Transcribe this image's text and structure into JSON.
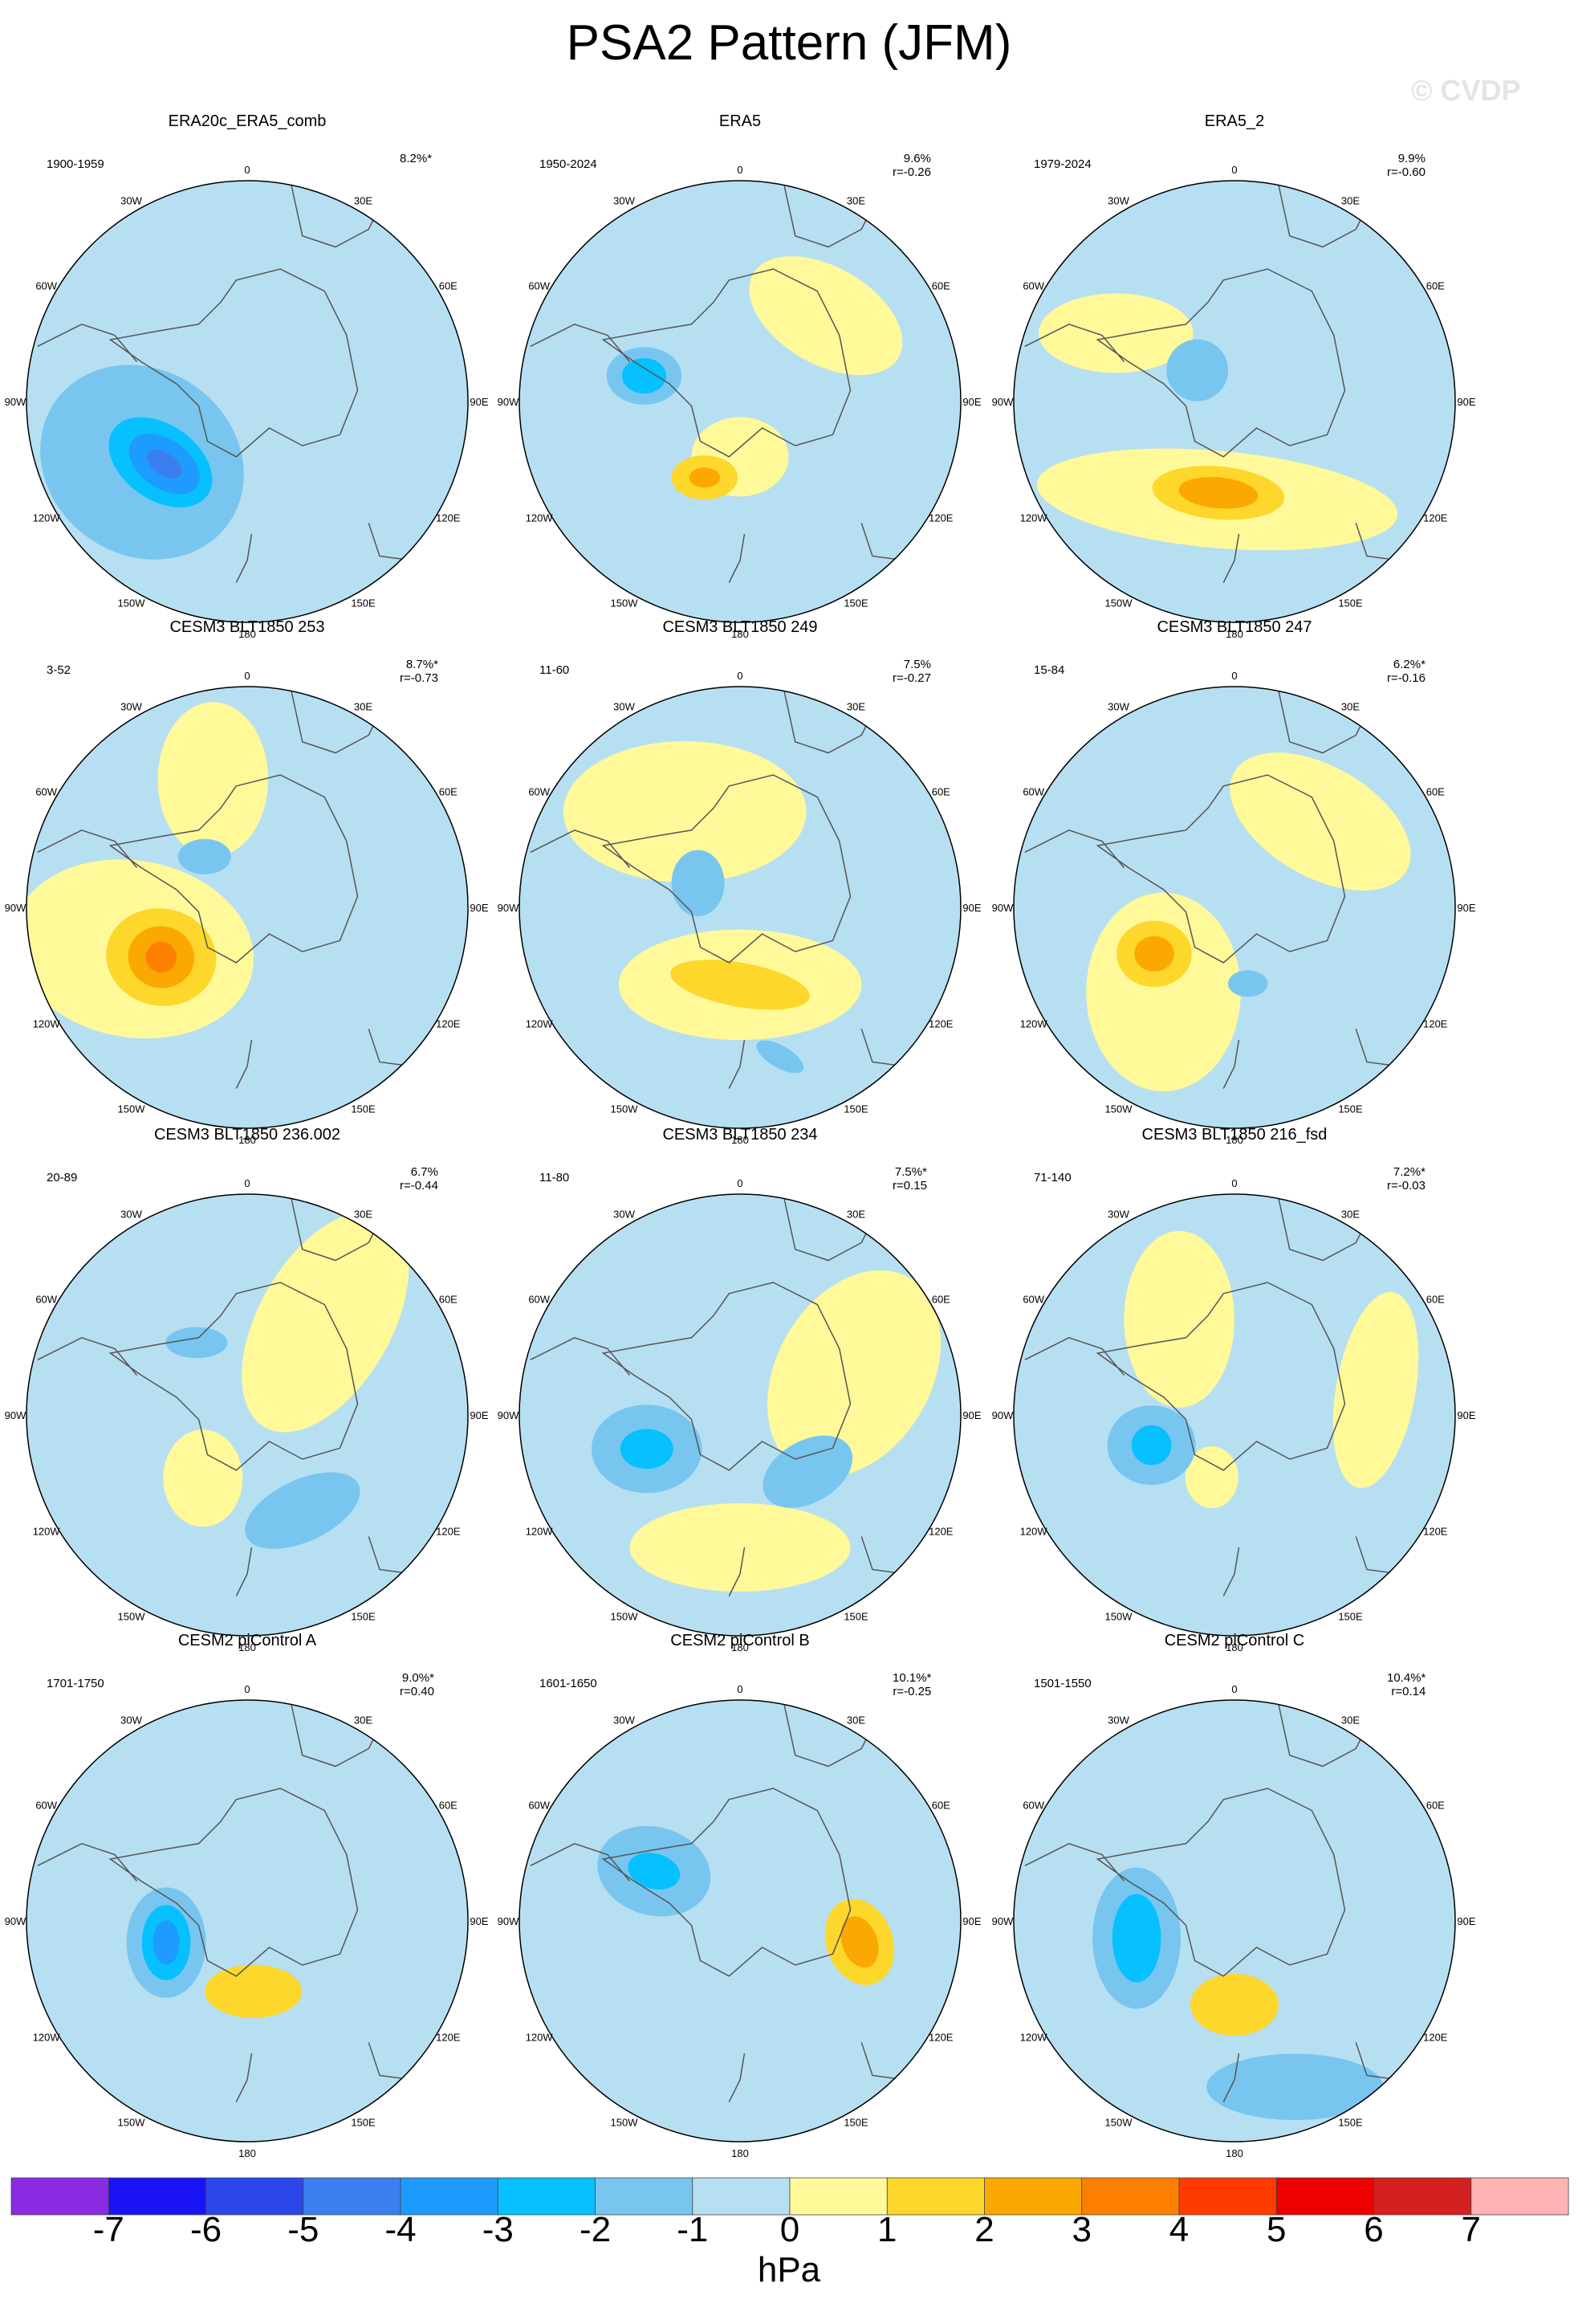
{
  "title": "PSA2 Pattern (JFM)",
  "watermark": "© CVDP",
  "colors": {
    "ocean_base": "#b7dff2",
    "continent_outline": "#555555",
    "levels": [
      "#8a2be2",
      "#1a14f5",
      "#2b47ea",
      "#3b7fee",
      "#1e9bff",
      "#06c0ff",
      "#78c6ef",
      "#b7dff2",
      "#fff99a",
      "#fdd72b",
      "#fca802",
      "#fd7f00",
      "#ff3b00",
      "#ec0000",
      "#d42020",
      "#ffb3b3"
    ]
  },
  "longitude_labels": [
    "0",
    "30E",
    "60E",
    "90E",
    "120E",
    "150E",
    "180",
    "150W",
    "120W",
    "90W",
    "60W",
    "30W"
  ],
  "colorbar": {
    "labels": [
      "-7",
      "-6",
      "-5",
      "-4",
      "-3",
      "-2",
      "-1",
      "0",
      "1",
      "2",
      "3",
      "4",
      "5",
      "6",
      "7"
    ],
    "unit": "hPa"
  },
  "panels": [
    {
      "title": "ERA20c_ERA5_comb",
      "years": "1900-1959",
      "pct": "8.2%*",
      "r": "",
      "anomalies": [
        {
          "lon": 240,
          "dist": 0.55,
          "rx": 0.48,
          "ry": 0.42,
          "rot": 35,
          "level": -1
        },
        {
          "lon": 235,
          "dist": 0.48,
          "rx": 0.26,
          "ry": 0.17,
          "rot": 35,
          "level": -2
        },
        {
          "lon": 233,
          "dist": 0.47,
          "rx": 0.18,
          "ry": 0.11,
          "rot": 35,
          "level": -3
        },
        {
          "lon": 233,
          "dist": 0.47,
          "rx": 0.09,
          "ry": 0.05,
          "rot": 35,
          "level": -4
        }
      ]
    },
    {
      "title": "ERA5",
      "years": "1950-2024",
      "pct": "9.6%",
      "r": "r=-0.26",
      "anomalies": [
        {
          "lon": 270,
          "dist": 0.45,
          "rx": 0.26,
          "ry": 0.22,
          "rot": 0,
          "level": 0
        },
        {
          "lon": 180,
          "dist": 0.25,
          "rx": 0.22,
          "ry": 0.18,
          "rot": 0,
          "level": 1
        },
        {
          "lon": 45,
          "dist": 0.55,
          "rx": 0.38,
          "ry": 0.22,
          "rot": 30,
          "level": 1
        },
        {
          "lon": 285,
          "dist": 0.45,
          "rx": 0.17,
          "ry": 0.13,
          "rot": 0,
          "level": -1
        },
        {
          "lon": 285,
          "dist": 0.45,
          "rx": 0.1,
          "ry": 0.08,
          "rot": 0,
          "level": -2
        },
        {
          "lon": 205,
          "dist": 0.38,
          "rx": 0.15,
          "ry": 0.1,
          "rot": 0,
          "level": 2
        },
        {
          "lon": 205,
          "dist": 0.38,
          "rx": 0.07,
          "ry": 0.045,
          "rot": 0,
          "level": 3
        }
      ]
    },
    {
      "title": "ERA5_2",
      "years": "1979-2024",
      "pct": "9.9%",
      "r": "r=-0.60",
      "anomalies": [
        {
          "lon": 190,
          "dist": 0.45,
          "rx": 0.82,
          "ry": 0.22,
          "rot": 5,
          "level": 1
        },
        {
          "lon": 300,
          "dist": 0.62,
          "rx": 0.35,
          "ry": 0.18,
          "rot": 0,
          "level": 1
        },
        {
          "lon": 310,
          "dist": 0.22,
          "rx": 0.14,
          "ry": 0.14,
          "rot": 0,
          "level": -1
        },
        {
          "lon": 190,
          "dist": 0.42,
          "rx": 0.3,
          "ry": 0.12,
          "rot": 5,
          "level": 2
        },
        {
          "lon": 190,
          "dist": 0.42,
          "rx": 0.18,
          "ry": 0.07,
          "rot": 5,
          "level": 3
        }
      ]
    },
    {
      "title": "CESM3 BLT1850 253",
      "years": "3-52",
      "pct": "8.7%*",
      "r": "r=-0.73",
      "anomalies": [
        {
          "lon": 250,
          "dist": 0.55,
          "rx": 0.55,
          "ry": 0.4,
          "rot": 10,
          "level": 1
        },
        {
          "lon": 345,
          "dist": 0.6,
          "rx": 0.25,
          "ry": 0.35,
          "rot": 0,
          "level": 1
        },
        {
          "lon": 320,
          "dist": 0.3,
          "rx": 0.12,
          "ry": 0.08,
          "rot": 0,
          "level": -1
        },
        {
          "lon": 240,
          "dist": 0.45,
          "rx": 0.25,
          "ry": 0.22,
          "rot": 10,
          "level": 2
        },
        {
          "lon": 240,
          "dist": 0.45,
          "rx": 0.15,
          "ry": 0.14,
          "rot": 10,
          "level": 3
        },
        {
          "lon": 240,
          "dist": 0.45,
          "rx": 0.07,
          "ry": 0.07,
          "rot": 10,
          "level": 4
        }
      ]
    },
    {
      "title": "CESM3 BLT1850 249",
      "years": "11-60",
      "pct": "7.5%",
      "r": "r=-0.27",
      "anomalies": [
        {
          "lon": 330,
          "dist": 0.5,
          "rx": 0.55,
          "ry": 0.32,
          "rot": 0,
          "level": 1
        },
        {
          "lon": 180,
          "dist": 0.35,
          "rx": 0.55,
          "ry": 0.25,
          "rot": 0,
          "level": 1
        },
        {
          "lon": 300,
          "dist": 0.22,
          "rx": 0.12,
          "ry": 0.15,
          "rot": 0,
          "level": -1
        },
        {
          "lon": 180,
          "dist": 0.35,
          "rx": 0.32,
          "ry": 0.1,
          "rot": 10,
          "level": 2
        },
        {
          "lon": 165,
          "dist": 0.7,
          "rx": 0.12,
          "ry": 0.05,
          "rot": 30,
          "level": -1
        }
      ]
    },
    {
      "title": "CESM3 BLT1850 247",
      "years": "15-84",
      "pct": "6.2%*",
      "r": "r=-0.16",
      "anomalies": [
        {
          "lon": 220,
          "dist": 0.5,
          "rx": 0.35,
          "ry": 0.45,
          "rot": 0,
          "level": 1
        },
        {
          "lon": 45,
          "dist": 0.55,
          "rx": 0.45,
          "ry": 0.25,
          "rot": 30,
          "level": 1
        },
        {
          "lon": 240,
          "dist": 0.42,
          "rx": 0.17,
          "ry": 0.15,
          "rot": 0,
          "level": 2
        },
        {
          "lon": 240,
          "dist": 0.42,
          "rx": 0.09,
          "ry": 0.08,
          "rot": 0,
          "level": 3
        },
        {
          "lon": 170,
          "dist": 0.35,
          "rx": 0.09,
          "ry": 0.06,
          "rot": 0,
          "level": -1
        }
      ]
    },
    {
      "title": "CESM3 BLT1850 236.002",
      "years": "20-89",
      "pct": "6.7%",
      "r": "r=-0.44",
      "anomalies": [
        {
          "lon": 40,
          "dist": 0.55,
          "rx": 0.3,
          "ry": 0.55,
          "rot": 30,
          "level": 1
        },
        {
          "lon": 215,
          "dist": 0.35,
          "rx": 0.18,
          "ry": 0.22,
          "rot": 0,
          "level": 1
        },
        {
          "lon": 150,
          "dist": 0.5,
          "rx": 0.28,
          "ry": 0.14,
          "rot": -25,
          "level": -1
        },
        {
          "lon": 325,
          "dist": 0.4,
          "rx": 0.14,
          "ry": 0.07,
          "rot": 0,
          "level": -1
        }
      ]
    },
    {
      "title": "CESM3 BLT1850 234",
      "years": "11-80",
      "pct": "7.5%*",
      "r": "r=0.15",
      "anomalies": [
        {
          "lon": 70,
          "dist": 0.55,
          "rx": 0.35,
          "ry": 0.5,
          "rot": 30,
          "level": 1
        },
        {
          "lon": 180,
          "dist": 0.6,
          "rx": 0.5,
          "ry": 0.2,
          "rot": 0,
          "level": 1
        },
        {
          "lon": 250,
          "dist": 0.45,
          "rx": 0.25,
          "ry": 0.2,
          "rot": 0,
          "level": -1
        },
        {
          "lon": 250,
          "dist": 0.45,
          "rx": 0.12,
          "ry": 0.09,
          "rot": 0,
          "level": -2
        },
        {
          "lon": 130,
          "dist": 0.4,
          "rx": 0.22,
          "ry": 0.14,
          "rot": -30,
          "level": -1
        }
      ]
    },
    {
      "title": "CESM3 BLT1850 216_fsd",
      "years": "71-140",
      "pct": "7.2%*",
      "r": "r=-0.03",
      "anomalies": [
        {
          "lon": 330,
          "dist": 0.5,
          "rx": 0.25,
          "ry": 0.4,
          "rot": 0,
          "level": 1
        },
        {
          "lon": 80,
          "dist": 0.65,
          "rx": 0.18,
          "ry": 0.45,
          "rot": 10,
          "level": 1
        },
        {
          "lon": 200,
          "dist": 0.3,
          "rx": 0.12,
          "ry": 0.14,
          "rot": 0,
          "level": 1
        },
        {
          "lon": 250,
          "dist": 0.4,
          "rx": 0.2,
          "ry": 0.18,
          "rot": 0,
          "level": -1
        },
        {
          "lon": 250,
          "dist": 0.4,
          "rx": 0.09,
          "ry": 0.09,
          "rot": 0,
          "level": -2
        }
      ]
    },
    {
      "title": "CESM2 piControl A",
      "years": "1701-1750",
      "pct": "9.0%*",
      "r": "r=0.40",
      "anomalies": [
        {
          "lon": 35,
          "dist": 0.5,
          "rx": 0.25,
          "ry": 0.12,
          "rot": 0,
          "level": 0
        },
        {
          "lon": 175,
          "dist": 0.85,
          "rx": 0.35,
          "ry": 0.16,
          "rot": 0,
          "level": 0
        },
        {
          "lon": 255,
          "dist": 0.38,
          "rx": 0.18,
          "ry": 0.25,
          "rot": 0,
          "level": -1
        },
        {
          "lon": 255,
          "dist": 0.38,
          "rx": 0.11,
          "ry": 0.17,
          "rot": 0,
          "level": -2
        },
        {
          "lon": 255,
          "dist": 0.38,
          "rx": 0.06,
          "ry": 0.1,
          "rot": 0,
          "level": -3
        },
        {
          "lon": 175,
          "dist": 0.32,
          "rx": 0.22,
          "ry": 0.12,
          "rot": 0,
          "level": 2
        }
      ]
    },
    {
      "title": "CESM2 piControl B",
      "years": "1601-1650",
      "pct": "10.1%*",
      "r": "r=-0.25",
      "anomalies": [
        {
          "lon": 300,
          "dist": 0.45,
          "rx": 0.26,
          "ry": 0.2,
          "rot": 15,
          "level": -1
        },
        {
          "lon": 300,
          "dist": 0.45,
          "rx": 0.12,
          "ry": 0.08,
          "rot": 15,
          "level": -2
        },
        {
          "lon": 100,
          "dist": 0.55,
          "rx": 0.15,
          "ry": 0.2,
          "rot": -20,
          "level": 2
        },
        {
          "lon": 100,
          "dist": 0.55,
          "rx": 0.08,
          "ry": 0.12,
          "rot": -20,
          "level": 3
        }
      ]
    },
    {
      "title": "CESM2 piControl C",
      "years": "1501-1550",
      "pct": "10.4%*",
      "r": "r=0.14",
      "anomalies": [
        {
          "lon": 260,
          "dist": 0.45,
          "rx": 0.2,
          "ry": 0.32,
          "rot": 0,
          "level": -1
        },
        {
          "lon": 260,
          "dist": 0.45,
          "rx": 0.11,
          "ry": 0.2,
          "rot": 0,
          "level": -2
        },
        {
          "lon": 160,
          "dist": 0.8,
          "rx": 0.4,
          "ry": 0.15,
          "rot": 0,
          "level": -1
        },
        {
          "lon": 180,
          "dist": 0.38,
          "rx": 0.2,
          "ry": 0.14,
          "rot": 0,
          "level": 2
        }
      ]
    }
  ]
}
